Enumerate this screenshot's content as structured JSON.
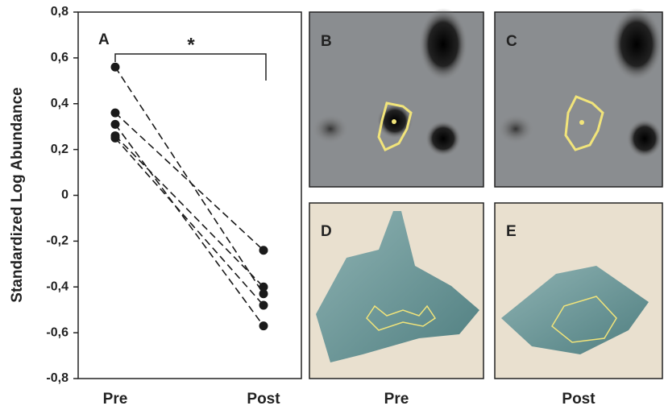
{
  "chart_data": {
    "type": "line",
    "annotations": [
      "A",
      "*"
    ],
    "y_label": "Standardized Log Abundance",
    "categories": [
      "Pre",
      "Post"
    ],
    "color": "#1a1a1a",
    "series": [
      {
        "values": [
          0.56,
          -0.43
        ]
      },
      {
        "values": [
          0.36,
          -0.24
        ]
      },
      {
        "values": [
          0.31,
          -0.57
        ]
      },
      {
        "values": [
          0.26,
          -0.4
        ]
      },
      {
        "values": [
          0.25,
          -0.48
        ]
      }
    ],
    "ylim": [
      -0.8,
      0.8
    ],
    "yticks": [
      {
        "value": -0.8,
        "label": "-0,8"
      },
      {
        "value": -0.6,
        "label": "-0,6"
      },
      {
        "value": -0.4,
        "label": "-0,4"
      },
      {
        "value": -0.2,
        "label": "-0,2"
      },
      0,
      {
        "value": 0.2,
        "label": "0,2"
      },
      {
        "value": 0.4,
        "label": "0,4"
      },
      {
        "value": 0.6,
        "label": "0,6"
      },
      {
        "value": 0.8,
        "label": "0,8"
      }
    ]
  },
  "panels": {
    "labels": [
      "B",
      "C",
      "D",
      "E"
    ],
    "captions": [
      "Pre",
      "Post"
    ]
  }
}
